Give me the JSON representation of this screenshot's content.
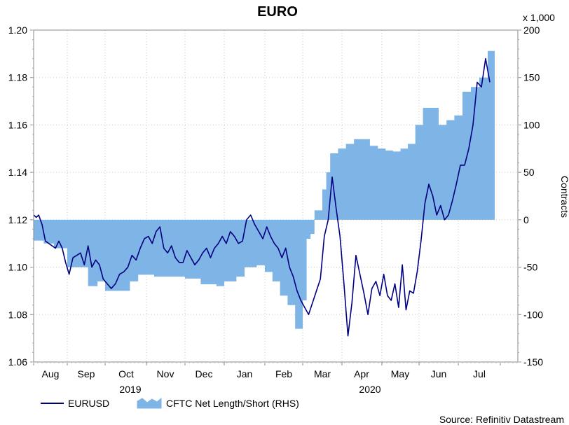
{
  "chart_data": {
    "type": "line+area",
    "title": "EURO",
    "source": "Source: Refinitiv Datastream",
    "left_axis": {
      "ylim": [
        1.06,
        1.2
      ],
      "ticks": [
        "1.06",
        "1.08",
        "1.10",
        "1.12",
        "1.14",
        "1.16",
        "1.18",
        "1.20"
      ]
    },
    "right_axis": {
      "label": "Contracts",
      "multiplier_label": "x 1,000",
      "ylim": [
        -150,
        200
      ],
      "ticks": [
        "-150",
        "-100",
        "-50",
        "0",
        "50",
        "100",
        "150",
        "200"
      ]
    },
    "x_axis": {
      "months": [
        "Aug",
        "Sep",
        "Oct",
        "Nov",
        "Dec",
        "Jan",
        "Feb",
        "Mar",
        "Apr",
        "May",
        "Jun",
        "Jul"
      ],
      "years": [
        "2019",
        "2020"
      ],
      "grid": true
    },
    "legend": [
      {
        "name": "EURUSD",
        "color": "#000080"
      },
      {
        "name": "CFTC Net Length/Short (RHS)",
        "color": "#7fb4e6"
      }
    ],
    "series": [
      {
        "name": "EURUSD",
        "type": "line",
        "axis": "left",
        "x_month": [
          0,
          0.08,
          0.15,
          0.25,
          0.35,
          0.45,
          0.55,
          0.65,
          0.75,
          0.85,
          0.95,
          1.05,
          1.15,
          1.25,
          1.35,
          1.45,
          1.55,
          1.65,
          1.75,
          1.85,
          1.95,
          2.05,
          2.15,
          2.25,
          2.35,
          2.45,
          2.55,
          2.65,
          2.75,
          2.85,
          2.95,
          3.05,
          3.15,
          3.25,
          3.35,
          3.45,
          3.55,
          3.65,
          3.75,
          3.85,
          3.95,
          4.05,
          4.15,
          4.25,
          4.35,
          4.45,
          4.55,
          4.65,
          4.75,
          4.85,
          4.95,
          5.05,
          5.15,
          5.25,
          5.35,
          5.45,
          5.55,
          5.65,
          5.75,
          5.85,
          5.95,
          6.05,
          6.15,
          6.25,
          6.35,
          6.45,
          6.55,
          6.65,
          6.75,
          6.85,
          6.95,
          7.05,
          7.15,
          7.25,
          7.35,
          7.45,
          7.55,
          7.65,
          7.75,
          7.85,
          7.95,
          8.05,
          8.15,
          8.25,
          8.35,
          8.45,
          8.55,
          8.65,
          8.75,
          8.85,
          8.95,
          9.05,
          9.15,
          9.25,
          9.35,
          9.45,
          9.55,
          9.65,
          9.75,
          9.85,
          9.95,
          10.05,
          10.15,
          10.25,
          10.35,
          10.45,
          10.55,
          10.65,
          10.75,
          10.85,
          10.95,
          11.05,
          11.15,
          11.25,
          11.35,
          11.45,
          11.55,
          11.65,
          11.75
        ],
        "values": [
          1.122,
          1.121,
          1.122,
          1.118,
          1.111,
          1.11,
          1.109,
          1.108,
          1.111,
          1.108,
          1.102,
          1.097,
          1.104,
          1.105,
          1.106,
          1.101,
          1.109,
          1.1,
          1.103,
          1.101,
          1.095,
          1.093,
          1.091,
          1.093,
          1.097,
          1.098,
          1.1,
          1.105,
          1.103,
          1.108,
          1.112,
          1.113,
          1.11,
          1.115,
          1.117,
          1.108,
          1.106,
          1.109,
          1.104,
          1.102,
          1.102,
          1.107,
          1.104,
          1.101,
          1.103,
          1.106,
          1.108,
          1.104,
          1.108,
          1.11,
          1.113,
          1.11,
          1.115,
          1.113,
          1.11,
          1.111,
          1.12,
          1.122,
          1.118,
          1.115,
          1.112,
          1.117,
          1.113,
          1.11,
          1.108,
          1.104,
          1.108,
          1.1,
          1.096,
          1.09,
          1.086,
          1.083,
          1.08,
          1.085,
          1.09,
          1.095,
          1.113,
          1.12,
          1.138,
          1.125,
          1.113,
          1.093,
          1.071,
          1.085,
          1.105,
          1.097,
          1.089,
          1.08,
          1.091,
          1.094,
          1.088,
          1.097,
          1.088,
          1.086,
          1.093,
          1.083,
          1.101,
          1.082,
          1.09,
          1.089,
          1.098,
          1.111,
          1.127,
          1.135,
          1.13,
          1.122,
          1.126,
          1.12,
          1.122,
          1.128,
          1.135,
          1.143,
          1.143,
          1.15,
          1.16,
          1.178,
          1.176,
          1.188,
          1.178
        ],
        "color": "#000080"
      },
      {
        "name": "CFTC Net Length/Short (RHS)",
        "type": "area",
        "axis": "right",
        "x_month": [
          0,
          0.3,
          0.6,
          1.0,
          1.4,
          1.55,
          1.8,
          2.0,
          2.6,
          2.8,
          3.2,
          3.6,
          4.0,
          4.4,
          4.8,
          5.0,
          5.3,
          5.5,
          5.8,
          6.0,
          6.2,
          6.4,
          6.6,
          6.8,
          7.0,
          7.1,
          7.2,
          7.3,
          7.5,
          7.6,
          7.7,
          7.9,
          8.1,
          8.3,
          8.5,
          8.7,
          8.9,
          9.1,
          9.3,
          9.5,
          9.7,
          9.9,
          10.1,
          10.3,
          10.5,
          10.7,
          10.9,
          11.1,
          11.3,
          11.5,
          11.7
        ],
        "values": [
          -22,
          -25,
          -30,
          -50,
          -50,
          -70,
          -65,
          -75,
          -65,
          -58,
          -60,
          -60,
          -62,
          -68,
          -70,
          -65,
          -60,
          -50,
          -48,
          -55,
          -65,
          -80,
          -90,
          -115,
          -85,
          -20,
          -15,
          10,
          32,
          50,
          70,
          75,
          80,
          85,
          85,
          78,
          75,
          73,
          72,
          75,
          80,
          100,
          118,
          118,
          100,
          105,
          110,
          135,
          140,
          150,
          178
        ],
        "color": "#7fb4e6"
      }
    ]
  }
}
